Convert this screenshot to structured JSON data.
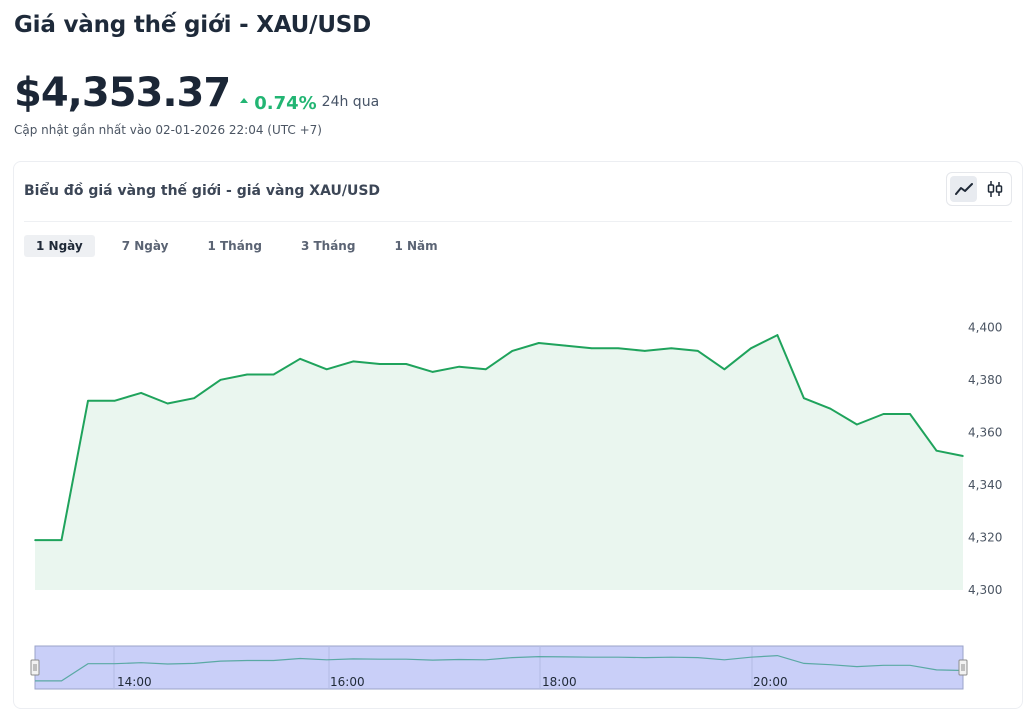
{
  "header": {
    "title": "Giá vàng thế giới - XAU/USD",
    "price": "$4,353.37",
    "change_pct": "0.74%",
    "change_period": "24h qua",
    "updated": "Cập nhật gần nhất vào 02-01-2026 22:04 (UTC +7)"
  },
  "card": {
    "title": "Biểu đồ giá vàng thế giới - giá vàng XAU/USD",
    "chart_type_buttons": [
      {
        "name": "line-chart",
        "icon": "line-chart-icon",
        "active": true
      },
      {
        "name": "candlestick",
        "icon": "candlestick-icon",
        "active": false
      }
    ],
    "tabs": [
      {
        "label": "1 Ngày",
        "active": true
      },
      {
        "label": "7 Ngày",
        "active": false
      },
      {
        "label": "1 Tháng",
        "active": false
      },
      {
        "label": "3 Tháng",
        "active": false
      },
      {
        "label": "1 Năm",
        "active": false
      }
    ]
  },
  "colors": {
    "line": "#1fa35c",
    "area": "#eaf6ef",
    "up": "#22b573",
    "navigator_fill": "#c9cff8",
    "navigator_line": "#5aa9a4"
  },
  "chart_data": {
    "type": "area",
    "title": "",
    "xlabel": "",
    "ylabel": "",
    "ylim": [
      4300,
      4402
    ],
    "yticks": [
      4300,
      4320,
      4340,
      4360,
      4380,
      4400
    ],
    "ytick_labels": [
      "4,300",
      "4,320",
      "4,340",
      "4,360",
      "4,380",
      "4,400"
    ],
    "grid": false,
    "series": [
      {
        "values": [
          4319,
          4319,
          4372,
          4372,
          4375,
          4371,
          4373,
          4380,
          4382,
          4382,
          4388,
          4384,
          4387,
          4386,
          4386,
          4383,
          4385,
          4384,
          4391,
          4394,
          4393,
          4392,
          4392,
          4391,
          4392,
          4391,
          4384,
          4392,
          4397,
          4373,
          4369,
          4363,
          4367,
          4367,
          4353,
          4351
        ]
      }
    ],
    "navigator": {
      "x_labels": [
        "14:00",
        "16:00",
        "18:00",
        "20:00"
      ]
    }
  }
}
